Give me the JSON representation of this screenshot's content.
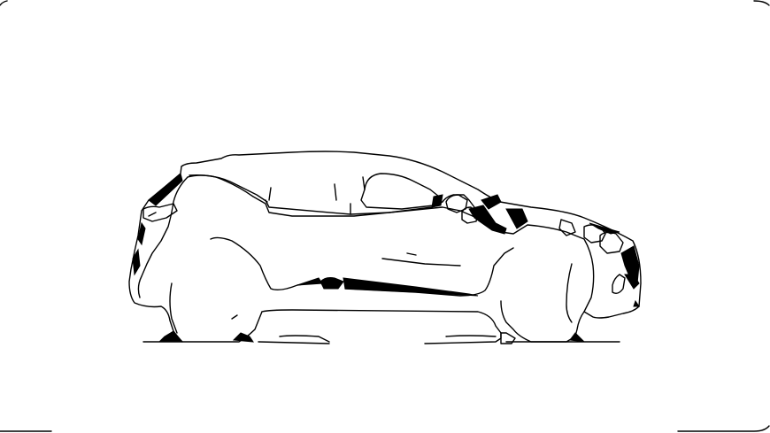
{
  "scene": {
    "subject": "car-side-outline-sketch",
    "ink_color": "#000000",
    "background_color": "#ffffff"
  }
}
